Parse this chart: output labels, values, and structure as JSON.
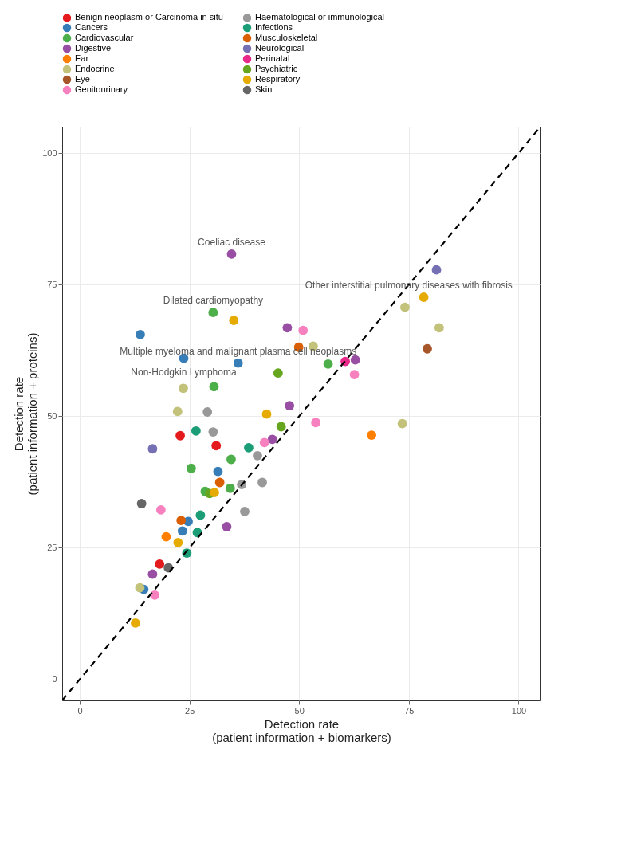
{
  "chart_data": {
    "type": "scatter",
    "xlabel": "Detection rate\n(patient information + biomarkers)",
    "ylabel": "Detection rate\n(patient information + proteins)",
    "xlim": [
      -4,
      105
    ],
    "ylim": [
      -4,
      105
    ],
    "xticks": [
      0,
      25,
      50,
      75,
      100
    ],
    "yticks": [
      0,
      25,
      50,
      75,
      100
    ],
    "grid": true,
    "legend": "top",
    "marker": "circle",
    "annotations": [
      {
        "text": "Coeliac disease",
        "x": 34.6,
        "y": 80.8
      },
      {
        "text": "Dilated cardiomyopathy",
        "x": 30.4,
        "y": 69.7
      },
      {
        "text": "Other interstitial pulmonary diseases with fibrosis",
        "x": 78.4,
        "y": 72.6
      },
      {
        "text": "Multiple myeloma and malignant plasma cell neoplasms",
        "x": 36.1,
        "y": 60.1
      },
      {
        "text": "Non-Hodgkin Lymphoma",
        "x": 23.7,
        "y": 61.0
      }
    ],
    "series": [
      {
        "name": "Benign neoplasm or Carcinoma in situ",
        "color": "#e41a1c",
        "x": [
          22.9,
          31.1,
          18.2
        ],
        "values": [
          46.3,
          44.4,
          21.9
        ]
      },
      {
        "name": "Cancers",
        "color": "#377eb8",
        "x": [
          13.8,
          23.7,
          36.1,
          31.5,
          24.7,
          23.4,
          14.6
        ],
        "values": [
          65.5,
          61.0,
          60.1,
          39.5,
          30.0,
          28.2,
          17.1
        ]
      },
      {
        "name": "Cardiovascular",
        "color": "#4daf4a",
        "x": [
          30.4,
          30.6,
          34.5,
          25.4,
          28.6,
          34.3,
          56.6
        ],
        "values": [
          69.7,
          55.6,
          41.8,
          40.1,
          35.7,
          36.3,
          59.9
        ]
      },
      {
        "name": "Digestive",
        "color": "#984ea3",
        "x": [
          34.6,
          47.3,
          47.8,
          43.9,
          33.5,
          16.6,
          62.8
        ],
        "values": [
          80.8,
          66.8,
          52.0,
          45.6,
          29.0,
          20.0,
          60.7
        ]
      },
      {
        "name": "Ear",
        "color": "#ff7f00",
        "x": [
          19.7,
          66.5
        ],
        "values": [
          27.1,
          46.4
        ]
      },
      {
        "name": "Endocrine",
        "color": "#c2c27a",
        "x": [
          23.6,
          22.3,
          53.2,
          74.1,
          81.9,
          73.5,
          13.7
        ],
        "values": [
          55.3,
          50.9,
          63.3,
          70.7,
          66.8,
          48.6,
          17.4
        ]
      },
      {
        "name": "Eye",
        "color": "#a65628",
        "x": [
          79.2
        ],
        "values": [
          62.8
        ]
      },
      {
        "name": "Genitourinary",
        "color": "#f781bf",
        "x": [
          18.5,
          42.1,
          50.9,
          62.6,
          53.8,
          17.1
        ],
        "values": [
          32.2,
          45.0,
          66.3,
          57.9,
          48.8,
          16.0
        ]
      },
      {
        "name": "Haematological or immunological",
        "color": "#999999",
        "x": [
          30.4,
          40.5,
          36.9,
          41.6,
          37.6,
          29.1
        ],
        "values": [
          47.0,
          42.5,
          37.0,
          37.4,
          31.9,
          50.8
        ]
      },
      {
        "name": "Infections",
        "color": "#1b9e77",
        "x": [
          26.5,
          38.5,
          27.5,
          26.8,
          24.4
        ],
        "values": [
          47.2,
          44.0,
          31.2,
          27.9,
          24.0
        ]
      },
      {
        "name": "Musculoskeletal",
        "color": "#d95f02",
        "x": [
          31.9,
          23.1,
          49.9
        ],
        "values": [
          37.4,
          30.2,
          63.1
        ]
      },
      {
        "name": "Neurological",
        "color": "#7570b3",
        "x": [
          16.6,
          81.3
        ],
        "values": [
          43.8,
          77.8
        ]
      },
      {
        "name": "Perinatal",
        "color": "#e7298a",
        "x": [
          60.5
        ],
        "values": [
          60.4
        ]
      },
      {
        "name": "Psychiatric",
        "color": "#66a61e",
        "x": [
          45.9,
          45.2,
          29.6
        ],
        "values": [
          48.0,
          58.2,
          35.3
        ]
      },
      {
        "name": "Respiratory",
        "color": "#e6ab02",
        "x": [
          35.1,
          42.6,
          30.7,
          22.4,
          12.7,
          78.4
        ],
        "values": [
          68.2,
          50.4,
          35.5,
          26.0,
          10.7,
          72.6
        ]
      },
      {
        "name": "Skin",
        "color": "#666666",
        "x": [
          14.1,
          20.2
        ],
        "values": [
          33.4,
          21.2
        ]
      },
      {
        "type": "line",
        "color": "#000000",
        "line_style": "dashed",
        "marker": "none",
        "x": [
          -4,
          105
        ],
        "values": [
          -4,
          105
        ]
      }
    ]
  }
}
